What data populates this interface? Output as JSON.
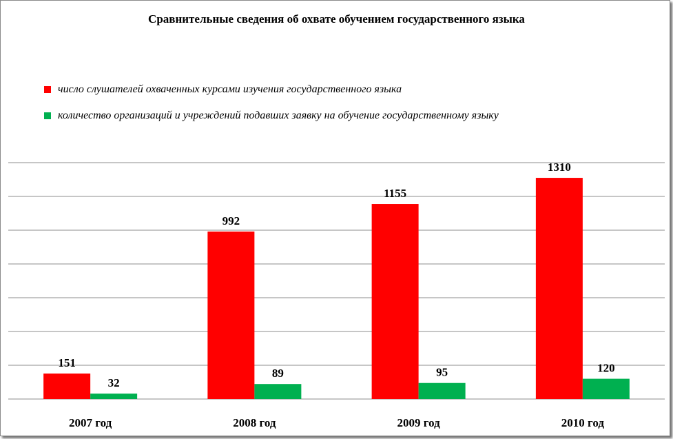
{
  "chart_data": {
    "type": "bar",
    "title": "Сравнительные сведения об охвате обучением государственного языка",
    "categories": [
      "2007 год",
      "2008 год",
      "2009 год",
      "2010 год"
    ],
    "series": [
      {
        "name": "число слушателей охваченных курсами изучения государственного языка",
        "values": [
          151,
          992,
          1155,
          1310
        ],
        "color": "#ff0000"
      },
      {
        "name": "количество организаций и учреждений подавших заявку на обучение государственному языку",
        "values": [
          32,
          89,
          95,
          120
        ],
        "color": "#00b050"
      }
    ],
    "ylim": [
      0,
      1400
    ],
    "ytick_step": 200,
    "grid": true,
    "legend_position": "top-left",
    "show_y_axis_labels": false
  }
}
